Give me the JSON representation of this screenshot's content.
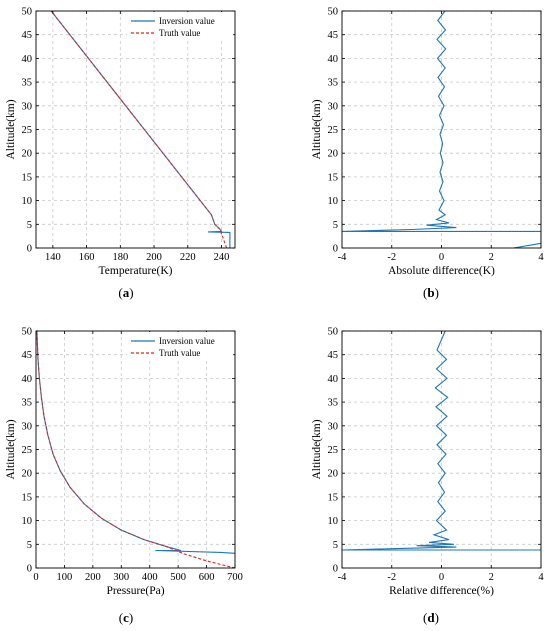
{
  "chart_data": [
    {
      "type": "line",
      "panel_label": "a",
      "xlabel": "Temperature(K)",
      "ylabel": "Altitude(km)",
      "xlim": [
        130,
        248
      ],
      "ylim": [
        0,
        50
      ],
      "xticks": [
        140,
        160,
        180,
        200,
        220,
        240
      ],
      "yticks": [
        0,
        5,
        10,
        15,
        20,
        25,
        30,
        35,
        40,
        45,
        50
      ],
      "grid": true,
      "legend": "top-right",
      "series": [
        {
          "name": "Inversion value",
          "color": "#1f77b4",
          "style": "solid",
          "x": [
            245,
            245,
            232,
            240,
            239,
            236,
            234,
            139
          ],
          "y": [
            0,
            3.3,
            3.4,
            3.5,
            4,
            5,
            7,
            50
          ]
        },
        {
          "name": "Truth value",
          "color": "#d62728",
          "style": "dashed",
          "x": [
            243,
            241,
            239,
            236,
            234,
            139
          ],
          "y": [
            0,
            2,
            4,
            5,
            7,
            50
          ]
        }
      ]
    },
    {
      "type": "line",
      "panel_label": "b",
      "xlabel": "Absolute difference(K)",
      "ylabel": "Altitude(km)",
      "xlim": [
        -4,
        4
      ],
      "ylim": [
        0,
        50
      ],
      "xticks": [
        -4,
        -2,
        0,
        2,
        4
      ],
      "yticks": [
        0,
        5,
        10,
        15,
        20,
        25,
        30,
        35,
        40,
        45,
        50
      ],
      "grid": true,
      "series": [
        {
          "name": "",
          "color": "#1f77b4",
          "x": [
            2.9,
            4,
            4,
            -4,
            -1.2,
            0.6,
            -0.6,
            0.3,
            -0.2,
            0.15,
            -0.1,
            0.1,
            -0.08,
            0.06,
            -0.06,
            0.06,
            -0.05,
            0.05,
            -0.06,
            0.08,
            -0.08,
            0.1,
            -0.12,
            0.12,
            -0.14,
            0.15,
            -0.16,
            0.17,
            -0.18,
            0.16,
            -0.15,
            0.14
          ],
          "y": [
            0,
            1,
            3.5,
            3.5,
            3.9,
            4.3,
            4.8,
            5.3,
            6,
            7,
            8,
            10,
            12,
            14,
            16,
            18,
            20,
            22,
            24,
            26,
            28,
            30,
            32,
            34,
            36,
            38,
            40,
            42,
            44,
            46,
            48,
            50
          ]
        }
      ]
    },
    {
      "type": "line",
      "panel_label": "c",
      "xlabel": "Pressure(Pa)",
      "ylabel": "Altitude(km)",
      "xlim": [
        0,
        700
      ],
      "ylim": [
        0,
        50
      ],
      "xticks": [
        0,
        100,
        200,
        300,
        400,
        500,
        600,
        700
      ],
      "yticks": [
        0,
        5,
        10,
        15,
        20,
        25,
        30,
        35,
        40,
        45,
        50
      ],
      "grid": true,
      "legend": "top-right",
      "series": [
        {
          "name": "Inversion value",
          "color": "#1f77b4",
          "style": "solid",
          "x": [
            700,
            650,
            420,
            510,
            460,
            380,
            300,
            230,
            170,
            120,
            85,
            60,
            42,
            28,
            19,
            12,
            7,
            3
          ],
          "y": [
            3.1,
            3.3,
            3.7,
            3.7,
            4.5,
            6,
            8,
            10.5,
            13.5,
            17,
            20.5,
            24,
            28,
            32,
            36,
            40,
            44,
            50
          ]
        },
        {
          "name": "Truth value",
          "color": "#d62728",
          "style": "dashed",
          "x": [
            700,
            600,
            520,
            460,
            380,
            300,
            230,
            170,
            120,
            85,
            60,
            42,
            28,
            19,
            12,
            7,
            3
          ],
          "y": [
            0,
            1.5,
            3,
            4.5,
            6,
            8,
            10.5,
            13.5,
            17,
            20.5,
            24,
            28,
            32,
            36,
            40,
            44,
            50
          ]
        }
      ]
    },
    {
      "type": "line",
      "panel_label": "d",
      "xlabel": "Relative difference(%)",
      "ylabel": "Altitude(km)",
      "xlim": [
        -4,
        4
      ],
      "ylim": [
        0,
        50
      ],
      "xticks": [
        -4,
        -2,
        0,
        2,
        4
      ],
      "yticks": [
        0,
        5,
        10,
        15,
        20,
        25,
        30,
        35,
        40,
        45,
        50
      ],
      "grid": true,
      "series": [
        {
          "name": "",
          "color": "#1f77b4",
          "x": [
            4,
            -4,
            -1.8,
            0.6,
            -1.0,
            0.5,
            -0.5,
            0.3,
            -0.3,
            0.2,
            -0.2,
            0.15,
            -0.15,
            0.12,
            -0.12,
            0.15,
            -0.15,
            0.18,
            -0.18,
            0.2,
            -0.2,
            0.22,
            -0.22,
            0.25,
            -0.25,
            0.22,
            -0.2,
            0.2,
            -0.18,
            0.15
          ],
          "y": [
            3.8,
            3.8,
            4.1,
            4.4,
            4.7,
            5.0,
            5.4,
            6,
            7,
            8,
            10,
            12,
            14,
            16,
            18,
            20,
            22,
            24,
            26,
            28,
            30,
            32,
            34,
            36,
            38,
            40,
            42,
            44,
            46,
            50
          ]
        }
      ]
    }
  ]
}
